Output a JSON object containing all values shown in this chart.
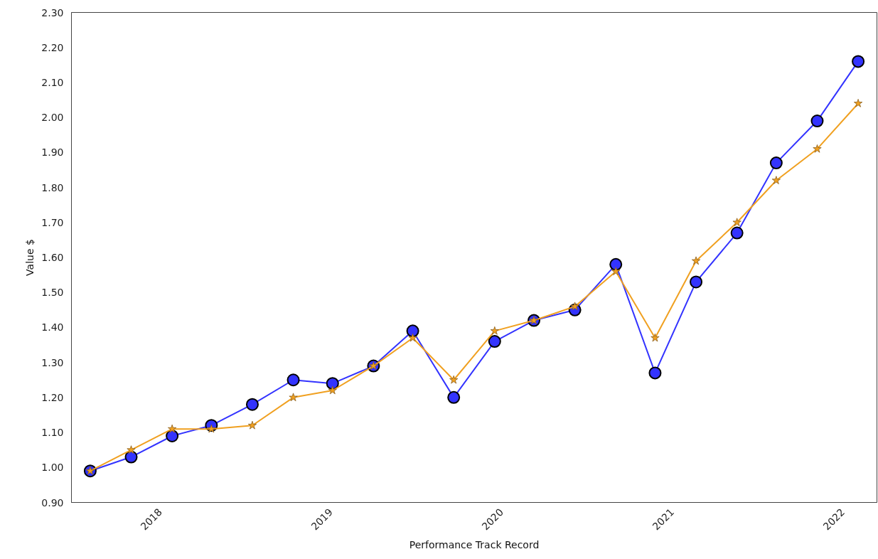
{
  "chart_data": {
    "type": "line",
    "xlabel": "Performance Track Record",
    "ylabel": "Value $",
    "x": [
      2017.59,
      2017.83,
      2018.07,
      2018.3,
      2018.54,
      2018.78,
      2019.01,
      2019.25,
      2019.48,
      2019.72,
      2019.96,
      2020.19,
      2020.43,
      2020.67,
      2020.9,
      2021.14,
      2021.38,
      2021.61,
      2021.85,
      2022.09
    ],
    "series": [
      {
        "color": "#3333ff",
        "marker": "circle",
        "values": [
          0.99,
          1.03,
          1.09,
          1.12,
          1.18,
          1.25,
          1.24,
          1.29,
          1.39,
          1.2,
          1.36,
          1.42,
          1.45,
          1.58,
          1.27,
          1.53,
          1.67,
          1.87,
          1.99,
          2.16
        ]
      },
      {
        "color": "#f0a020",
        "marker": "star",
        "values": [
          0.99,
          1.05,
          1.11,
          1.11,
          1.12,
          1.2,
          1.22,
          1.29,
          1.37,
          1.25,
          1.39,
          1.42,
          1.46,
          1.56,
          1.37,
          1.59,
          1.7,
          1.82,
          1.91,
          2.04
        ]
      }
    ],
    "xlim": [
      2017.48,
      2022.2
    ],
    "xticks": [
      2018,
      2019,
      2020,
      2021,
      2022
    ],
    "ylim": [
      0.9,
      2.3
    ],
    "yticks": [
      {
        "value": 0.9,
        "label": "0.90"
      },
      {
        "value": 1.0,
        "label": "1.00"
      },
      {
        "value": 1.1,
        "label": "1.10"
      },
      {
        "value": 1.2,
        "label": "1.20"
      },
      {
        "value": 1.3,
        "label": "1.30"
      },
      {
        "value": 1.4,
        "label": "1.40"
      },
      {
        "value": 1.5,
        "label": "1.50"
      },
      {
        "value": 1.6,
        "label": "1.60"
      },
      {
        "value": 1.7,
        "label": "1.70"
      },
      {
        "value": 1.8,
        "label": "1.80"
      },
      {
        "value": 1.9,
        "label": "1.90"
      },
      {
        "value": 2.0,
        "label": "2.00"
      },
      {
        "value": 2.1,
        "label": "2.10"
      },
      {
        "value": 2.2,
        "label": "2.20"
      },
      {
        "value": 2.3,
        "label": "2.30"
      }
    ],
    "grid": false,
    "line_style": "solid"
  }
}
